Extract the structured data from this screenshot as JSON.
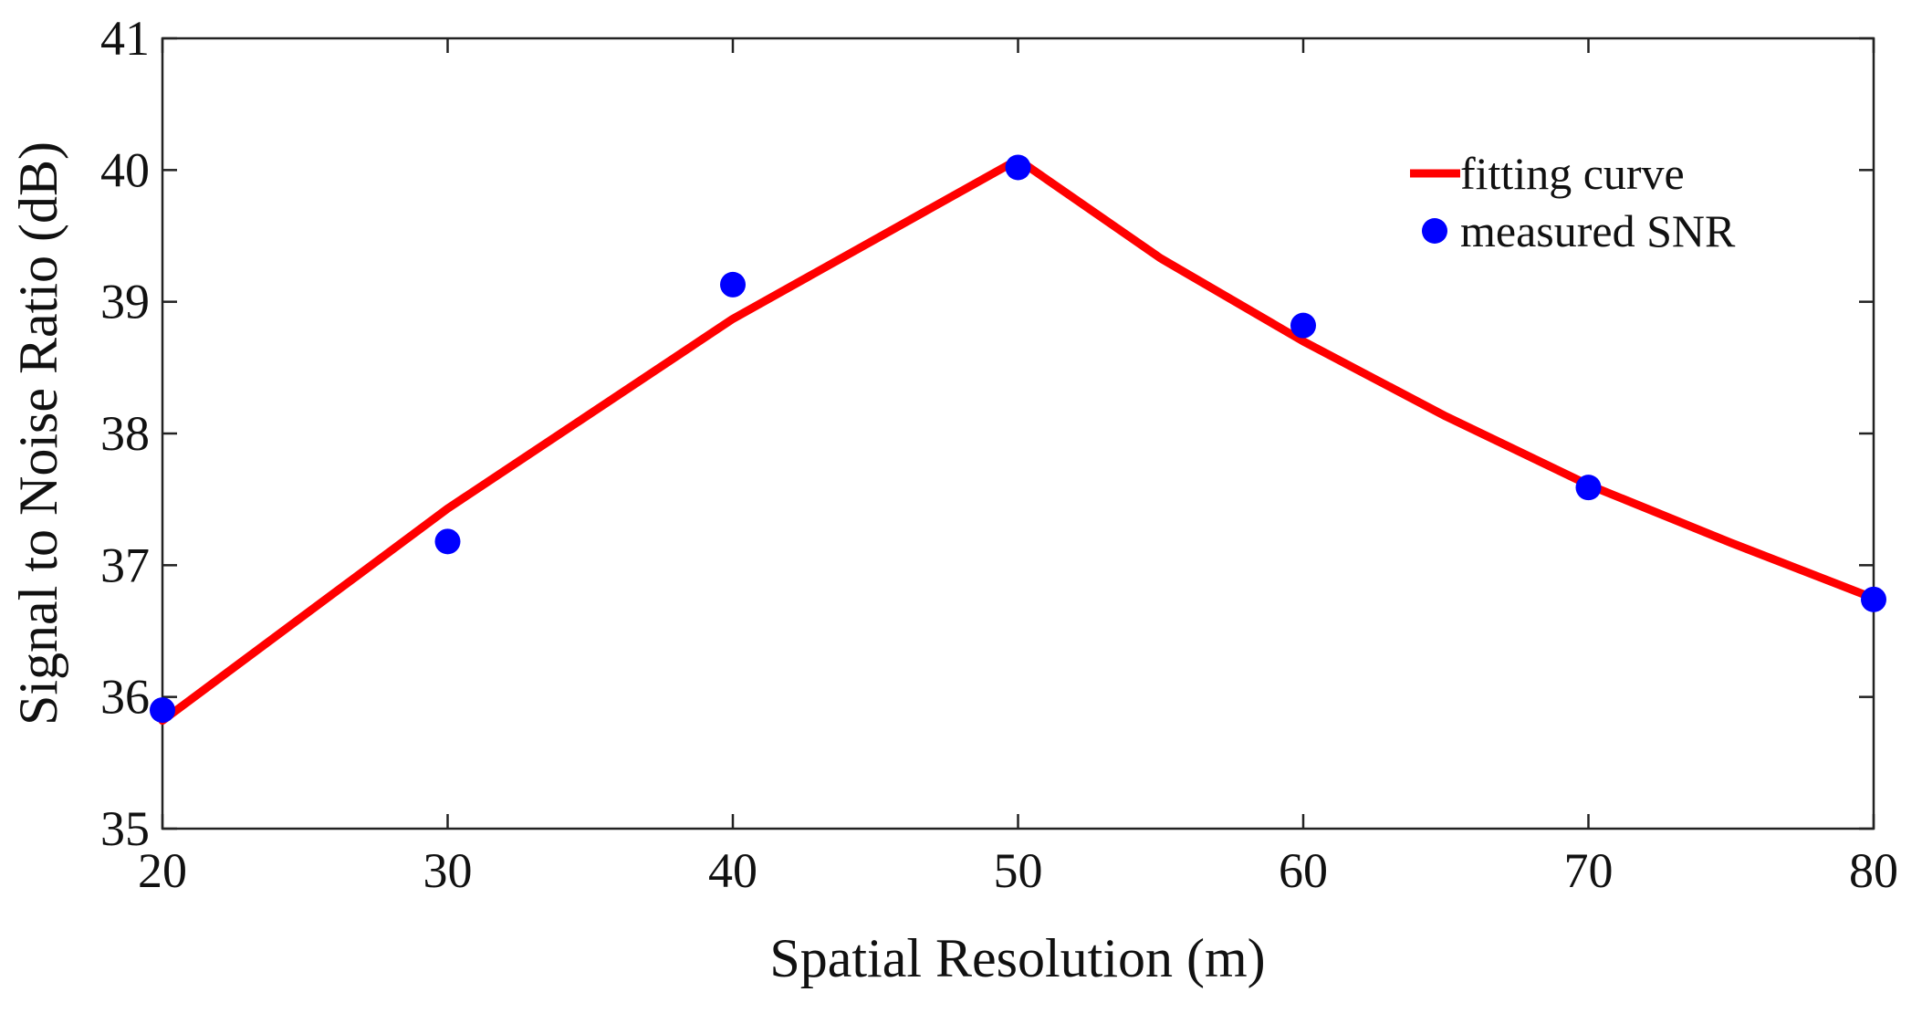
{
  "chart_data": {
    "type": "line",
    "title": "",
    "xlabel": "Spatial Resolution (m)",
    "ylabel": "Signal to Noise Ratio (dB)",
    "xlim": [
      20,
      80
    ],
    "ylim": [
      35,
      41
    ],
    "xticks": [
      20,
      30,
      40,
      50,
      60,
      70,
      80
    ],
    "yticks": [
      35,
      36,
      37,
      38,
      39,
      40,
      41
    ],
    "grid": false,
    "legend_position": "top-right",
    "series": [
      {
        "name": "fitting curve",
        "kind": "line",
        "color": "#ff0000",
        "x": [
          20,
          30,
          40,
          50,
          55,
          60,
          65,
          70,
          75,
          80
        ],
        "y": [
          35.82,
          37.43,
          38.87,
          40.08,
          39.33,
          38.7,
          38.13,
          37.61,
          37.17,
          36.75
        ]
      },
      {
        "name": "measured SNR",
        "kind": "scatter",
        "color": "#0000ff",
        "x": [
          20,
          30,
          40,
          50,
          60,
          70,
          80
        ],
        "y": [
          35.9,
          37.18,
          39.13,
          40.02,
          38.82,
          37.59,
          36.74
        ]
      }
    ]
  }
}
